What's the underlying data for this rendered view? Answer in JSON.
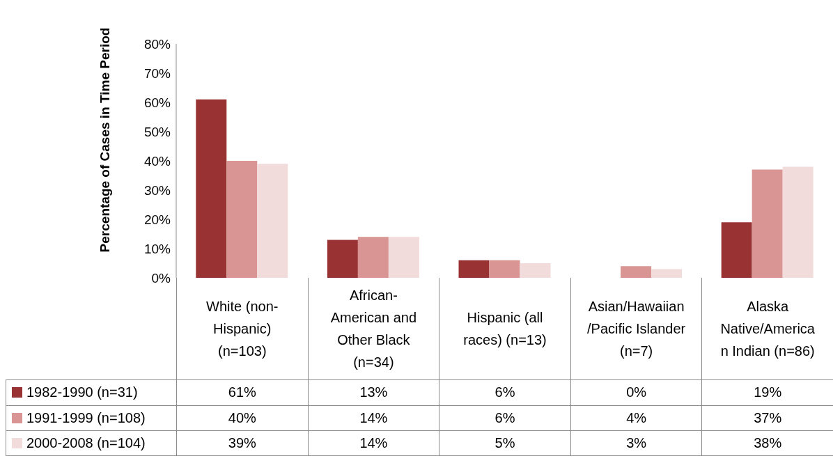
{
  "chart_data": {
    "type": "bar",
    "ylabel": "Percentage of Cases in Time Period",
    "categories": [
      "White (non-Hispanic) (n=103)",
      "African-American and Other Black (n=34)",
      "Hispanic (all races) (n=13)",
      "Asian/Hawaiian /Pacific Islander (n=7)",
      "Alaska Native/American Indian (n=86)"
    ],
    "series": [
      {
        "name": "1982-1990 (n=31)",
        "color": "#993333",
        "values": [
          61,
          13,
          6,
          0,
          19
        ],
        "value_labels": [
          "61%",
          "13%",
          "6%",
          "0%",
          "19%"
        ]
      },
      {
        "name": "1991-1999 (n=108)",
        "color": "#d99594",
        "values": [
          40,
          14,
          6,
          4,
          37
        ],
        "value_labels": [
          "40%",
          "14%",
          "6%",
          "4%",
          "37%"
        ]
      },
      {
        "name": "2000-2008 (n=104)",
        "color": "#f2dcdb",
        "values": [
          39,
          14,
          5,
          3,
          38
        ],
        "value_labels": [
          "39%",
          "14%",
          "5%",
          "3%",
          "38%"
        ]
      }
    ],
    "ylim": [
      0,
      80
    ],
    "yticks": [
      {
        "value": 0,
        "label": "0%"
      },
      {
        "value": 10,
        "label": "10%"
      },
      {
        "value": 20,
        "label": "20%"
      },
      {
        "value": 30,
        "label": "30%"
      },
      {
        "value": 40,
        "label": "40%"
      },
      {
        "value": 50,
        "label": "50%"
      },
      {
        "value": 60,
        "label": "60%"
      },
      {
        "value": 70,
        "label": "70%"
      },
      {
        "value": 80,
        "label": "80%"
      }
    ],
    "grid": false,
    "legend": "bottom left"
  }
}
